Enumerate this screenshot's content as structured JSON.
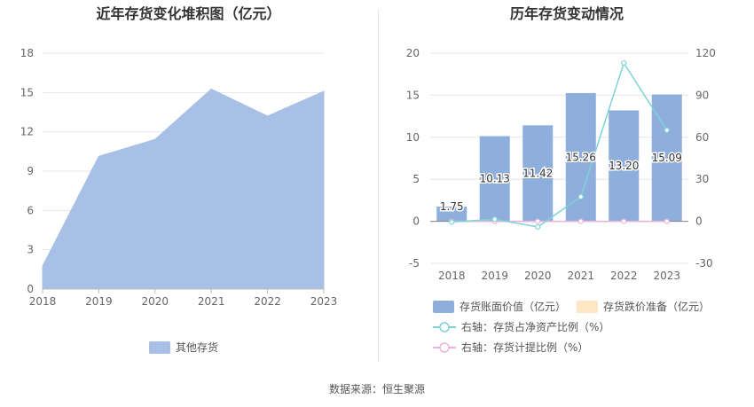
{
  "source": "数据来源：恒生聚源",
  "chart_data": [
    {
      "type": "area",
      "title": "近年存货变化堆积图（亿元）",
      "x": [
        "2018",
        "2019",
        "2020",
        "2021",
        "2022",
        "2023"
      ],
      "yticks": [
        "0",
        "3",
        "6",
        "9",
        "12",
        "15",
        "18"
      ],
      "ylim": [
        0,
        18
      ],
      "grid": true,
      "legend_position": "bottom",
      "series": [
        {
          "name": "其他存货",
          "values": [
            1.75,
            10.13,
            11.42,
            15.26,
            13.2,
            15.09
          ],
          "color": "#a8c0e6"
        }
      ]
    },
    {
      "type": "bar",
      "title": "历年存货变动情况",
      "categories": [
        "2018",
        "2019",
        "2020",
        "2021",
        "2022",
        "2023"
      ],
      "yticks_left": [
        "-5",
        "0",
        "5",
        "10",
        "15",
        "20"
      ],
      "yticks_right": [
        "-30",
        "0",
        "30",
        "60",
        "90",
        "120"
      ],
      "ylim_left": [
        -5,
        20
      ],
      "ylim_right": [
        -30,
        120
      ],
      "grid": true,
      "legend_position": "bottom",
      "series": [
        {
          "name": "存货账面价值（亿元）",
          "axis": "left",
          "kind": "bar",
          "values": [
            1.75,
            10.13,
            11.42,
            15.26,
            13.2,
            15.09
          ],
          "labels": [
            "1.75",
            "10.13",
            "11.42",
            "15.26",
            "13.20",
            "15.09"
          ],
          "color": "#8eaedc"
        },
        {
          "name": "存货跌价准备（亿元）",
          "axis": "left",
          "kind": "bar",
          "values": [
            0,
            0,
            0,
            0,
            0,
            0
          ],
          "color": "#fce6c4"
        },
        {
          "name": "右轴：存货占净资产比例（%）",
          "axis": "right",
          "kind": "line",
          "values": [
            -0.5,
            1.5,
            -4.0,
            17.5,
            113.0,
            65.0
          ],
          "color": "#7fd3d6"
        },
        {
          "name": "右轴：存货计提比例（%）",
          "axis": "right",
          "kind": "line",
          "values": [
            0,
            0,
            0,
            0,
            0,
            0
          ],
          "color": "#e9b4d8"
        }
      ]
    }
  ]
}
